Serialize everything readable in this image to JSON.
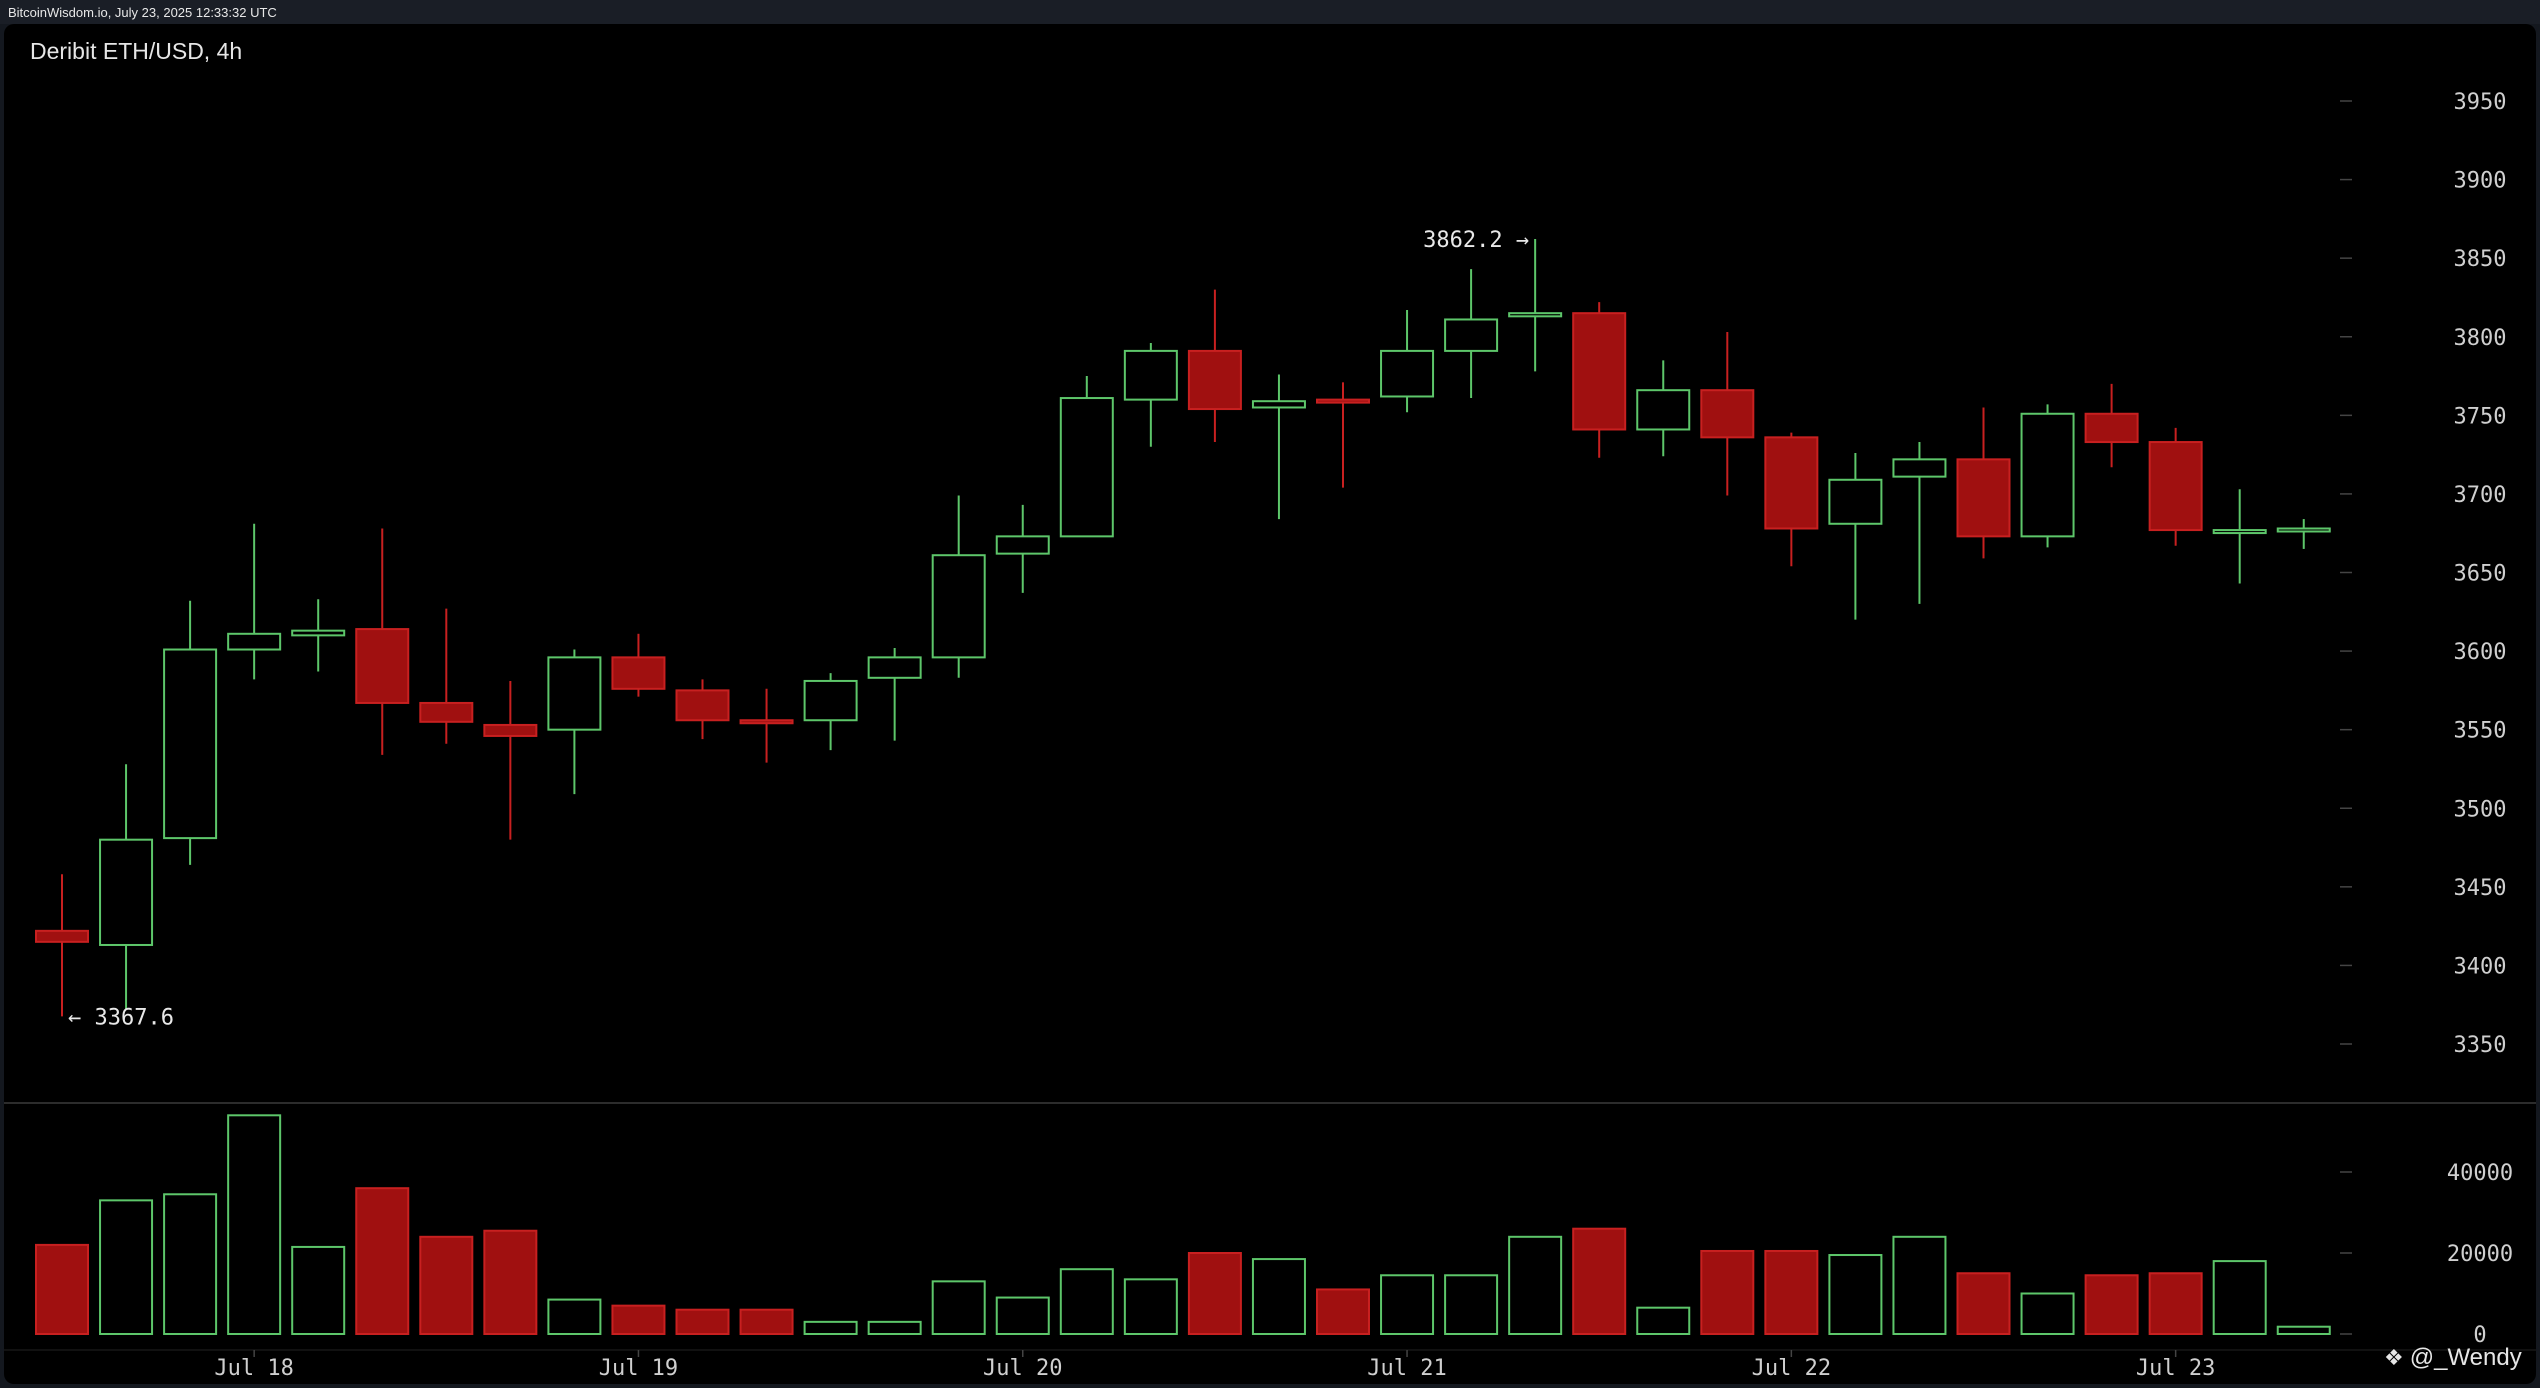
{
  "topbar": {
    "text": "BitcoinWisdom.io, July 23, 2025 12:33:32 UTC"
  },
  "watermark": {
    "icon": "diamond-logo-icon",
    "text": "@_Wendy"
  },
  "colors": {
    "up": "#5dc66a",
    "down": "#a01010",
    "down_wick": "#c82020",
    "grid_tick": "#444444",
    "axis_text": "#cfcfcf",
    "separator": "#3a3a3a"
  },
  "chart_data": {
    "type": "candlestick",
    "title": "Deribit ETH/USD, 4h",
    "y_ticks": [
      3350,
      3400,
      3450,
      3500,
      3550,
      3600,
      3650,
      3700,
      3750,
      3800,
      3850,
      3900,
      3950
    ],
    "ylim": [
      3320,
      3990
    ],
    "volume_ticks": [
      "0",
      "20000",
      "40000"
    ],
    "volume_tick_values": [
      0,
      20000,
      40000
    ],
    "volume_ylim": [
      0,
      55000
    ],
    "x_labels": [
      {
        "label": "Jul 18",
        "candle_index": 3
      },
      {
        "label": "Jul 19",
        "candle_index": 9
      },
      {
        "label": "Jul 20",
        "candle_index": 15
      },
      {
        "label": "Jul 21",
        "candle_index": 21
      },
      {
        "label": "Jul 22",
        "candle_index": 27
      },
      {
        "label": "Jul 23",
        "candle_index": 33
      }
    ],
    "annotations": [
      {
        "text": "3862.2 →",
        "candle_index": 23,
        "value": 3862.2,
        "side": "left"
      },
      {
        "text": "← 3367.6",
        "candle_index": 0,
        "value": 3367.6,
        "side": "right"
      }
    ],
    "candles": [
      {
        "o": 3422,
        "h": 3458,
        "l": 3367.6,
        "c": 3415,
        "v": 22000
      },
      {
        "o": 3413,
        "h": 3528,
        "l": 3372,
        "c": 3480,
        "v": 33000
      },
      {
        "o": 3481,
        "h": 3632,
        "l": 3464,
        "c": 3601,
        "v": 34500
      },
      {
        "o": 3601,
        "h": 3681,
        "l": 3582,
        "c": 3611,
        "v": 54000
      },
      {
        "o": 3610,
        "h": 3633,
        "l": 3587,
        "c": 3613,
        "v": 21500
      },
      {
        "o": 3614,
        "h": 3678,
        "l": 3534,
        "c": 3567,
        "v": 36000
      },
      {
        "o": 3567,
        "h": 3627,
        "l": 3541,
        "c": 3555,
        "v": 24000
      },
      {
        "o": 3553,
        "h": 3581,
        "l": 3480,
        "c": 3546,
        "v": 25500
      },
      {
        "o": 3550,
        "h": 3601,
        "l": 3509,
        "c": 3596,
        "v": 8500
      },
      {
        "o": 3596,
        "h": 3611,
        "l": 3571,
        "c": 3576,
        "v": 7000
      },
      {
        "o": 3575,
        "h": 3582,
        "l": 3544,
        "c": 3556,
        "v": 6000
      },
      {
        "o": 3556,
        "h": 3576,
        "l": 3529,
        "c": 3555,
        "v": 6000
      },
      {
        "o": 3556,
        "h": 3586,
        "l": 3537,
        "c": 3581,
        "v": 3000
      },
      {
        "o": 3583,
        "h": 3602,
        "l": 3543,
        "c": 3596,
        "v": 3000
      },
      {
        "o": 3596,
        "h": 3699,
        "l": 3583,
        "c": 3661,
        "v": 13000
      },
      {
        "o": 3662,
        "h": 3693,
        "l": 3637,
        "c": 3673,
        "v": 9000
      },
      {
        "o": 3673,
        "h": 3775,
        "l": 3673,
        "c": 3761,
        "v": 16000
      },
      {
        "o": 3760,
        "h": 3796,
        "l": 3730,
        "c": 3791,
        "v": 13500
      },
      {
        "o": 3791,
        "h": 3830,
        "l": 3733,
        "c": 3754,
        "v": 20000
      },
      {
        "o": 3755,
        "h": 3776,
        "l": 3684,
        "c": 3759,
        "v": 18500
      },
      {
        "o": 3760,
        "h": 3771,
        "l": 3704,
        "c": 3759,
        "v": 11000
      },
      {
        "o": 3762,
        "h": 3817,
        "l": 3752,
        "c": 3791,
        "v": 14500
      },
      {
        "o": 3791,
        "h": 3843,
        "l": 3761,
        "c": 3811,
        "v": 14500
      },
      {
        "o": 3813,
        "h": 3862.2,
        "l": 3778,
        "c": 3815,
        "v": 24000
      },
      {
        "o": 3815,
        "h": 3822,
        "l": 3723,
        "c": 3741,
        "v": 26000
      },
      {
        "o": 3741,
        "h": 3785,
        "l": 3724,
        "c": 3766,
        "v": 6500
      },
      {
        "o": 3766,
        "h": 3803,
        "l": 3699,
        "c": 3736,
        "v": 20500
      },
      {
        "o": 3736,
        "h": 3739,
        "l": 3654,
        "c": 3678,
        "v": 20500
      },
      {
        "o": 3681,
        "h": 3726,
        "l": 3620,
        "c": 3709,
        "v": 19500
      },
      {
        "o": 3711,
        "h": 3733,
        "l": 3630,
        "c": 3722,
        "v": 24000
      },
      {
        "o": 3722,
        "h": 3755,
        "l": 3659,
        "c": 3673,
        "v": 15000
      },
      {
        "o": 3673,
        "h": 3757,
        "l": 3666,
        "c": 3751,
        "v": 10000
      },
      {
        "o": 3751,
        "h": 3770,
        "l": 3717,
        "c": 3733,
        "v": 14500
      },
      {
        "o": 3733,
        "h": 3742,
        "l": 3667,
        "c": 3677,
        "v": 15000
      },
      {
        "o": 3677,
        "h": 3703,
        "l": 3643,
        "c": 3677,
        "v": 18000
      },
      {
        "o": 3677,
        "h": 3684,
        "l": 3665,
        "c": 3678,
        "v": 1800
      }
    ]
  }
}
